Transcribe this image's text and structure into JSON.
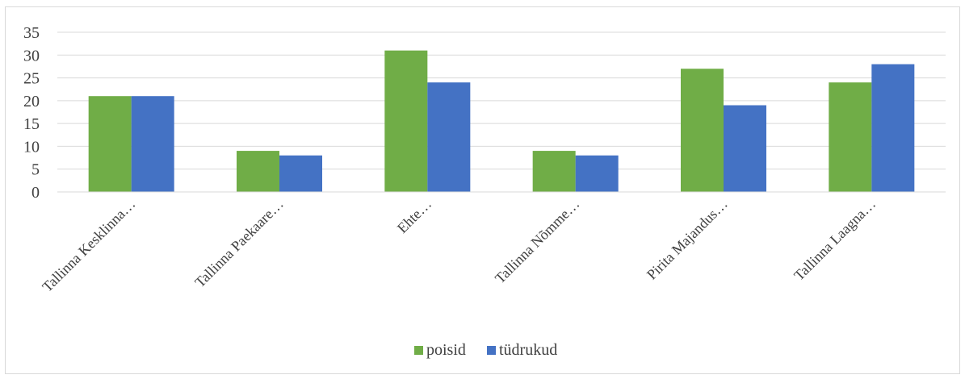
{
  "chart_data": {
    "type": "bar",
    "categories": [
      "Tallinna Kesklinna…",
      "Tallinna Paekaare…",
      "Ehte…",
      "Tallinna Nõmme…",
      "Pirita Majandus…",
      "Tallinna Laagna…"
    ],
    "series": [
      {
        "name": "poisid",
        "values": [
          21,
          9,
          31,
          9,
          27,
          24
        ],
        "color": "#70ad47"
      },
      {
        "name": "tüdrukud",
        "values": [
          21,
          8,
          24,
          8,
          19,
          28
        ],
        "color": "#4472c4"
      }
    ],
    "yticks": [
      "0",
      "5",
      "10",
      "15",
      "20",
      "25",
      "30",
      "35"
    ],
    "ylim": [
      0,
      35
    ],
    "grid": true,
    "legend_position": "bottom",
    "gridline_color": "#d9d9d9"
  }
}
